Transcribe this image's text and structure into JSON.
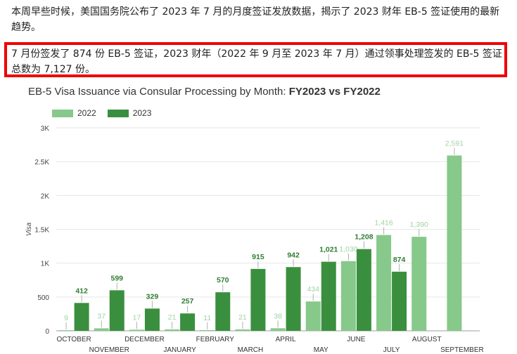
{
  "article": {
    "intro": "本周早些时候，美国国务院公布了 2023 年 7 月的月度签证发放数据，揭示了 2023 财年 EB-5 签证使用的最新趋势。",
    "highlight": "7 月份签发了 874 份 EB-5 签证，2023 财年（2022 年 9 月至 2023 年 7 月）通过领事处理签发的 EB-5 签证总数为 7,127 份。"
  },
  "chart_data": {
    "type": "bar",
    "title_regular": "EB-5 Visa Issuance via Consular Processing by Month: ",
    "title_bold": "FY2023 vs FY2022",
    "ylabel": "Visa",
    "xlabel": "",
    "ylim": [
      0,
      3000
    ],
    "yticks": [
      0,
      500,
      1000,
      1500,
      2000,
      2500,
      3000
    ],
    "ytick_labels": [
      "0",
      "500",
      "1K",
      "1.5K",
      "2K",
      "2.5K",
      "3K"
    ],
    "legend_position": "top-left",
    "grid": true,
    "categories": [
      "OCTOBER",
      "NOVEMBER",
      "DECEMBER",
      "JANUARY",
      "FEBRUARY",
      "MARCH",
      "APRIL",
      "MAY",
      "JUNE",
      "JULY",
      "AUGUST",
      "SEPTEMBER"
    ],
    "series": [
      {
        "name": "2022",
        "color": "#86c98a",
        "label_color": "#9fd3a2",
        "values": [
          9,
          37,
          17,
          21,
          11,
          21,
          38,
          434,
          1030,
          1416,
          1390,
          2591
        ],
        "labels": [
          "9",
          "37",
          "17",
          "21",
          "11",
          "21",
          "38",
          "434",
          "1,030",
          "1,416",
          "1,390",
          "2,591"
        ]
      },
      {
        "name": "2023",
        "color": "#3a8f3e",
        "label_color": "#2e7d32",
        "values": [
          412,
          599,
          329,
          257,
          570,
          915,
          942,
          1021,
          1208,
          874,
          null,
          null
        ],
        "labels": [
          "412",
          "599",
          "329",
          "257",
          "570",
          "915",
          "942",
          "1,021",
          "1,208",
          "874",
          "",
          ""
        ]
      }
    ]
  }
}
